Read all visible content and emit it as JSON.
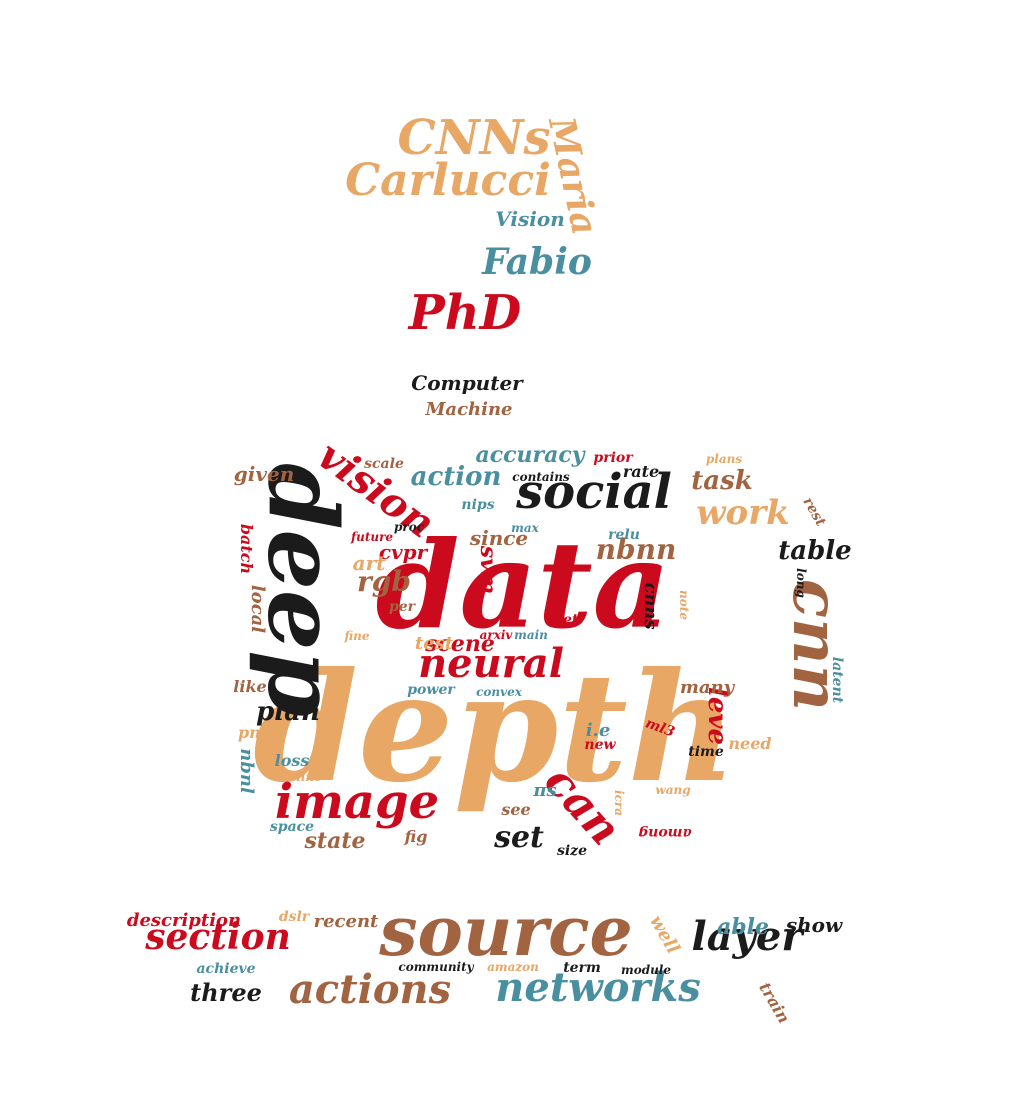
{
  "palette": {
    "tan": "#e8a765",
    "red": "#cc0a1e",
    "black": "#1b1b1b",
    "brown": "#a26341",
    "teal": "#4a8fa0"
  },
  "words": [
    {
      "text": "depth",
      "color": "tan"
    },
    {
      "text": "data",
      "color": "red"
    },
    {
      "text": "deep",
      "color": "black"
    },
    {
      "text": "source",
      "color": "brown"
    },
    {
      "text": "cnn",
      "color": "brown"
    },
    {
      "text": "social",
      "color": "black"
    },
    {
      "text": "image",
      "color": "red"
    },
    {
      "text": "neural",
      "color": "red"
    },
    {
      "text": "vision",
      "color": "red"
    },
    {
      "text": "networks",
      "color": "teal"
    },
    {
      "text": "actions",
      "color": "brown"
    },
    {
      "text": "section",
      "color": "red"
    },
    {
      "text": "layer",
      "color": "black"
    },
    {
      "text": "can",
      "color": "red"
    },
    {
      "text": "CNNs",
      "color": "tan"
    },
    {
      "text": "Carlucci",
      "color": "tan"
    },
    {
      "text": "Maria",
      "color": "tan"
    },
    {
      "text": "Fabio",
      "color": "teal"
    },
    {
      "text": "PhD",
      "color": "red"
    },
    {
      "text": "Vision",
      "color": "teal"
    },
    {
      "text": "Computer",
      "color": "black"
    },
    {
      "text": "Machine",
      "color": "brown"
    },
    {
      "text": "work",
      "color": "tan"
    },
    {
      "text": "action",
      "color": "teal"
    },
    {
      "text": "accuracy",
      "color": "teal"
    },
    {
      "text": "task",
      "color": "brown"
    },
    {
      "text": "table",
      "color": "black"
    },
    {
      "text": "nbnn",
      "color": "brown"
    },
    {
      "text": "rgb",
      "color": "brown"
    },
    {
      "text": "plan",
      "color": "black"
    },
    {
      "text": "set",
      "color": "black"
    },
    {
      "text": "leve",
      "color": "red"
    },
    {
      "text": "scene",
      "color": "red"
    },
    {
      "text": "state",
      "color": "brown"
    },
    {
      "text": "given",
      "color": "brown"
    },
    {
      "text": "svm",
      "color": "red"
    },
    {
      "text": "cvpr",
      "color": "red"
    },
    {
      "text": "since",
      "color": "brown"
    },
    {
      "text": "art",
      "color": "tan"
    },
    {
      "text": "test",
      "color": "tan"
    },
    {
      "text": "many",
      "color": "brown"
    },
    {
      "text": "three",
      "color": "black"
    },
    {
      "text": "able",
      "color": "teal"
    },
    {
      "text": "show",
      "color": "black"
    },
    {
      "text": "description",
      "color": "red"
    },
    {
      "text": "recent",
      "color": "brown"
    },
    {
      "text": "well",
      "color": "tan"
    },
    {
      "text": "train",
      "color": "brown"
    },
    {
      "text": "local",
      "color": "brown"
    },
    {
      "text": "batch",
      "color": "red"
    },
    {
      "text": "nbnl",
      "color": "teal"
    },
    {
      "text": "pnp",
      "color": "tan"
    },
    {
      "text": "loss",
      "color": "teal"
    },
    {
      "text": "line",
      "color": "tan"
    },
    {
      "text": "space",
      "color": "teal"
    },
    {
      "text": "fig",
      "color": "brown"
    },
    {
      "text": "see",
      "color": "brown"
    },
    {
      "text": "size",
      "color": "black"
    },
    {
      "text": "i.e",
      "color": "teal"
    },
    {
      "text": "new",
      "color": "red"
    },
    {
      "text": "need",
      "color": "tan"
    },
    {
      "text": "time",
      "color": "black"
    },
    {
      "text": "ml3",
      "color": "red"
    },
    {
      "text": "wang",
      "color": "tan"
    },
    {
      "text": "among",
      "color": "red"
    },
    {
      "text": "latent",
      "color": "teal"
    },
    {
      "text": "long",
      "color": "black"
    },
    {
      "text": "rest",
      "color": "brown"
    },
    {
      "text": "plans",
      "color": "tan"
    },
    {
      "text": "rate",
      "color": "black"
    },
    {
      "text": "prior",
      "color": "red"
    },
    {
      "text": "contains",
      "color": "black"
    },
    {
      "text": "proc",
      "color": "black"
    },
    {
      "text": "scale",
      "color": "brown"
    },
    {
      "text": "nips",
      "color": "teal"
    },
    {
      "text": "max",
      "color": "teal"
    },
    {
      "text": "relu",
      "color": "teal"
    },
    {
      "text": "future",
      "color": "red"
    },
    {
      "text": "per",
      "color": "brown"
    },
    {
      "text": "let",
      "color": "red"
    },
    {
      "text": "cnns",
      "color": "black"
    },
    {
      "text": "note",
      "color": "tan"
    },
    {
      "text": "fine",
      "color": "tan"
    },
    {
      "text": "arxiv",
      "color": "red"
    },
    {
      "text": "main",
      "color": "teal"
    },
    {
      "text": "power",
      "color": "teal"
    },
    {
      "text": "convex",
      "color": "teal"
    },
    {
      "text": "like",
      "color": "brown"
    },
    {
      "text": "dslr",
      "color": "tan"
    },
    {
      "text": "community",
      "color": "black"
    },
    {
      "text": "amazon",
      "color": "tan"
    },
    {
      "text": "term",
      "color": "black"
    },
    {
      "text": "module",
      "color": "black"
    },
    {
      "text": "achieve",
      "color": "teal"
    },
    {
      "text": "icra",
      "color": "tan"
    },
    {
      "text": "πs",
      "color": "teal"
    }
  ]
}
